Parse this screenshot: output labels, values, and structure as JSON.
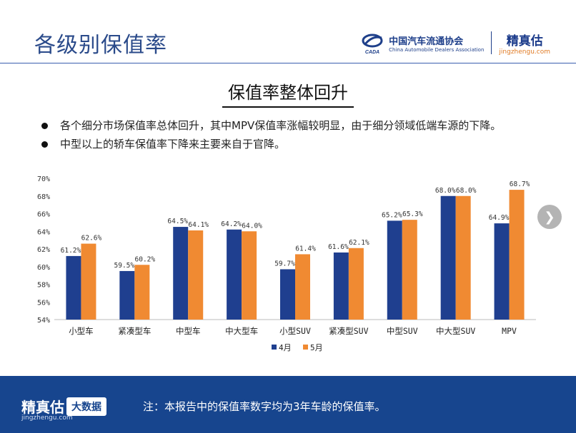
{
  "header": {
    "title": "各级别保值率",
    "cada_name": "中国汽车流通协会",
    "cada_en": "China Automobile Dealers Association",
    "cada_abbr": "CADA",
    "jzg_name": "精真估",
    "jzg_url": "jingzhengu.com"
  },
  "headline": "保值率整体回升",
  "bullets": [
    "各个细分市场保值率总体回升，其中MPV保值率涨幅较明显，由于细分领域低端车源的下降。",
    "中型以上的轿车保值率下降来主要来自于官降。"
  ],
  "chart_data": {
    "type": "bar",
    "categories": [
      "小型车",
      "紧凑型车",
      "中型车",
      "中大型车",
      "小型SUV",
      "紧凑型SUV",
      "中型SUV",
      "中大型SUV",
      "MPV"
    ],
    "series": [
      {
        "name": "4月",
        "color": "#1f3f8f",
        "values": [
          61.2,
          59.5,
          64.5,
          64.2,
          59.7,
          61.6,
          65.2,
          68.0,
          64.9
        ]
      },
      {
        "name": "5月",
        "color": "#f08a32",
        "values": [
          62.6,
          60.2,
          64.1,
          64.0,
          61.4,
          62.1,
          65.3,
          68.0,
          68.7
        ]
      }
    ],
    "data_labels": [
      [
        "61.2%",
        "59.5%",
        "64.5%",
        "64.2%",
        "59.7%",
        "61.6%",
        "65.2%",
        "68.0%",
        "64.9%"
      ],
      [
        "62.6%",
        "60.2%",
        "64.1%",
        "64.0%",
        "61.4%",
        "62.1%",
        "65.3%",
        "68.0%",
        "68.7%"
      ]
    ],
    "ylim": [
      54,
      70
    ],
    "yticks": [
      54,
      56,
      58,
      60,
      62,
      64,
      66,
      68,
      70
    ],
    "ytick_labels": [
      "54%",
      "56%",
      "58%",
      "60%",
      "62%",
      "64%",
      "66%",
      "68%",
      "70%"
    ],
    "legend_position": "bottom",
    "grid": false
  },
  "footer": {
    "logo": "精真估",
    "logo_url": "jingzhengu.com",
    "badge": "大数据",
    "note": "注：本报告中的保值率数字均为3年车龄的保值率。"
  },
  "nav": {
    "next_icon": "chevron-right-icon"
  }
}
